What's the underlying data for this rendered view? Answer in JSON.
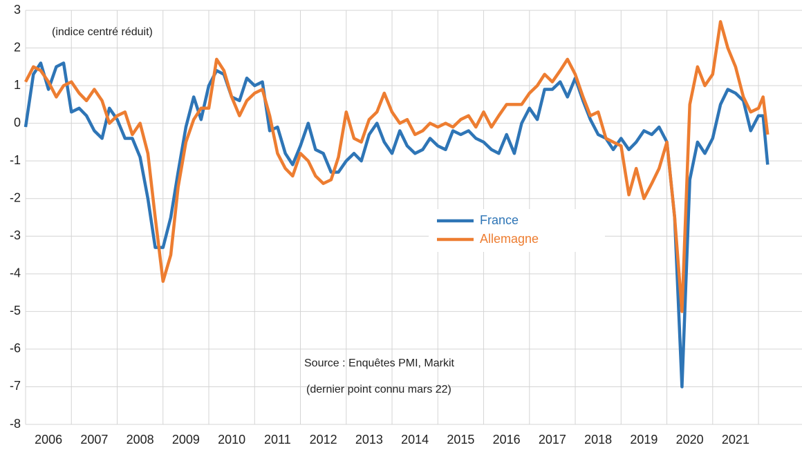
{
  "chart_data": {
    "type": "line",
    "annotations": [
      "(indice centré réduit)",
      "Source : Enquêtes PMI, Markit",
      "(dernier point connu mars 22)"
    ],
    "x": [
      2006.0,
      2006.17,
      2006.33,
      2006.5,
      2006.67,
      2006.83,
      2007.0,
      2007.17,
      2007.33,
      2007.5,
      2007.67,
      2007.83,
      2008.0,
      2008.17,
      2008.33,
      2008.5,
      2008.67,
      2008.83,
      2009.0,
      2009.17,
      2009.33,
      2009.5,
      2009.67,
      2009.83,
      2010.0,
      2010.17,
      2010.33,
      2010.5,
      2010.67,
      2010.83,
      2011.0,
      2011.17,
      2011.33,
      2011.5,
      2011.67,
      2011.83,
      2012.0,
      2012.17,
      2012.33,
      2012.5,
      2012.67,
      2012.83,
      2013.0,
      2013.17,
      2013.33,
      2013.5,
      2013.67,
      2013.83,
      2014.0,
      2014.17,
      2014.33,
      2014.5,
      2014.67,
      2014.83,
      2015.0,
      2015.17,
      2015.33,
      2015.5,
      2015.67,
      2015.83,
      2016.0,
      2016.17,
      2016.33,
      2016.5,
      2016.67,
      2016.83,
      2017.0,
      2017.17,
      2017.33,
      2017.5,
      2017.67,
      2017.83,
      2018.0,
      2018.17,
      2018.33,
      2018.5,
      2018.67,
      2018.83,
      2019.0,
      2019.17,
      2019.33,
      2019.5,
      2019.67,
      2019.83,
      2020.0,
      2020.17,
      2020.33,
      2020.5,
      2020.67,
      2020.83,
      2021.0,
      2021.17,
      2021.33,
      2021.5,
      2021.67,
      2021.83,
      2022.0,
      2022.1,
      2022.2
    ],
    "series": [
      {
        "name": "France",
        "color": "#2e75b6",
        "values": [
          -0.1,
          1.3,
          1.6,
          0.9,
          1.5,
          1.6,
          0.3,
          0.4,
          0.2,
          -0.2,
          -0.4,
          0.4,
          0.1,
          -0.4,
          -0.4,
          -0.9,
          -2.0,
          -3.3,
          -3.3,
          -2.5,
          -1.3,
          -0.1,
          0.7,
          0.1,
          1.0,
          1.4,
          1.3,
          0.7,
          0.6,
          1.2,
          1.0,
          1.1,
          -0.2,
          -0.1,
          -0.8,
          -1.1,
          -0.6,
          0.0,
          -0.7,
          -0.8,
          -1.3,
          -1.3,
          -1.0,
          -0.8,
          -1.0,
          -0.3,
          0.0,
          -0.5,
          -0.8,
          -0.2,
          -0.6,
          -0.8,
          -0.7,
          -0.4,
          -0.6,
          -0.7,
          -0.2,
          -0.3,
          -0.2,
          -0.4,
          -0.5,
          -0.7,
          -0.8,
          -0.3,
          -0.8,
          0.0,
          0.4,
          0.1,
          0.9,
          0.9,
          1.1,
          0.7,
          1.2,
          0.6,
          0.1,
          -0.3,
          -0.4,
          -0.7,
          -0.4,
          -0.7,
          -0.5,
          -0.2,
          -0.3,
          -0.1,
          -0.5,
          -2.5,
          -7.0,
          -1.5,
          -0.5,
          -0.8,
          -0.4,
          0.5,
          0.9,
          0.8,
          0.6,
          -0.2,
          0.2,
          0.2,
          -1.1
        ]
      },
      {
        "name": "Allemagne",
        "color": "#ed7d31",
        "values": [
          1.1,
          1.5,
          1.4,
          1.1,
          0.7,
          1.0,
          1.1,
          0.8,
          0.6,
          0.9,
          0.6,
          0.0,
          0.2,
          0.3,
          -0.3,
          0.0,
          -0.8,
          -2.5,
          -4.2,
          -3.5,
          -1.7,
          -0.5,
          0.1,
          0.4,
          0.4,
          1.7,
          1.4,
          0.7,
          0.2,
          0.6,
          0.8,
          0.9,
          0.2,
          -0.8,
          -1.2,
          -1.4,
          -0.8,
          -1.0,
          -1.4,
          -1.6,
          -1.5,
          -0.9,
          0.3,
          -0.4,
          -0.5,
          0.1,
          0.3,
          0.8,
          0.3,
          0.0,
          0.1,
          -0.3,
          -0.2,
          0.0,
          -0.1,
          0.0,
          -0.1,
          0.1,
          0.2,
          -0.1,
          0.3,
          -0.1,
          0.2,
          0.5,
          0.5,
          0.5,
          0.8,
          1.0,
          1.3,
          1.1,
          1.4,
          1.7,
          1.3,
          0.7,
          0.2,
          0.3,
          -0.4,
          -0.5,
          -0.6,
          -1.9,
          -1.2,
          -2.0,
          -1.6,
          -1.2,
          -0.5,
          -2.5,
          -5.0,
          0.5,
          1.5,
          1.0,
          1.3,
          2.7,
          2.0,
          1.5,
          0.7,
          0.3,
          0.4,
          0.7,
          -0.3
        ]
      }
    ],
    "xlim": [
      2006,
      2022.95
    ],
    "xticks": [
      2006,
      2007,
      2008,
      2009,
      2010,
      2011,
      2012,
      2013,
      2014,
      2015,
      2016,
      2017,
      2018,
      2019,
      2020,
      2021
    ],
    "xgrid": [
      2007,
      2008,
      2009,
      2010,
      2011,
      2012,
      2013,
      2014,
      2015,
      2016,
      2017,
      2018,
      2019,
      2020,
      2021,
      2022
    ],
    "ylim": [
      -8,
      3
    ],
    "yticks": [
      -8,
      -7,
      -6,
      -5,
      -4,
      -3,
      -2,
      -1,
      0,
      1,
      2,
      3
    ],
    "grid": true
  }
}
